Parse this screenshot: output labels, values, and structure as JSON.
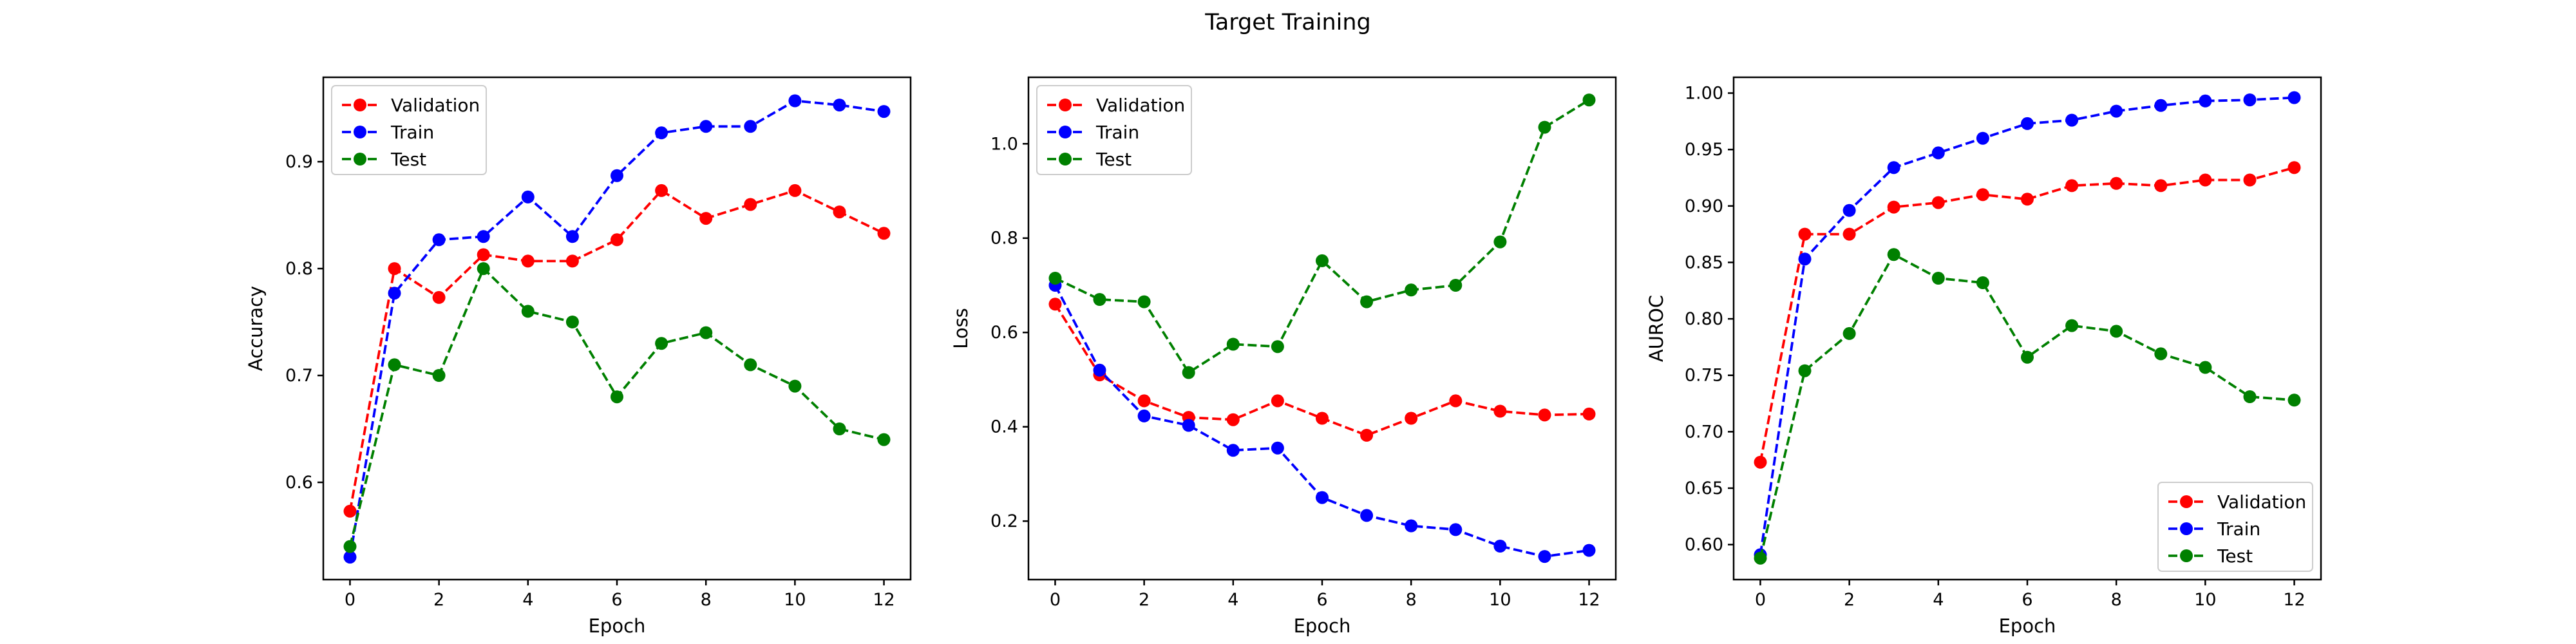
{
  "figure": {
    "title": "Target Training"
  },
  "colors": {
    "Validation": "#ff0000",
    "Train": "#0000ff",
    "Test": "#008000"
  },
  "chart_data": [
    {
      "type": "line",
      "title": "",
      "xlabel": "Epoch",
      "ylabel": "Accuracy",
      "x": [
        0,
        1,
        2,
        3,
        4,
        5,
        6,
        7,
        8,
        9,
        10,
        11,
        12
      ],
      "xlim": [
        -0.6,
        12.6
      ],
      "ylim": [
        0.509,
        0.979
      ],
      "xticks": [
        0,
        2,
        4,
        6,
        8,
        10,
        12
      ],
      "yticks": [
        0.6,
        0.7,
        0.8,
        0.9
      ],
      "ytick_labels": [
        "0.6",
        "0.7",
        "0.8",
        "0.9"
      ],
      "legend_loc": "upper left",
      "series": [
        {
          "name": "Validation",
          "color": "#ff0000",
          "values": [
            0.573,
            0.8,
            0.773,
            0.813,
            0.807,
            0.807,
            0.827,
            0.873,
            0.847,
            0.86,
            0.873,
            0.853,
            0.833
          ]
        },
        {
          "name": "Train",
          "color": "#0000ff",
          "values": [
            0.53,
            0.777,
            0.827,
            0.83,
            0.867,
            0.83,
            0.887,
            0.927,
            0.933,
            0.933,
            0.957,
            0.953,
            0.947
          ]
        },
        {
          "name": "Test",
          "color": "#008000",
          "values": [
            0.54,
            0.71,
            0.7,
            0.8,
            0.76,
            0.75,
            0.68,
            0.73,
            0.74,
            0.71,
            0.69,
            0.65,
            0.64
          ]
        }
      ]
    },
    {
      "type": "line",
      "title": "",
      "xlabel": "Epoch",
      "ylabel": "Loss",
      "x": [
        0,
        1,
        2,
        3,
        4,
        5,
        6,
        7,
        8,
        9,
        10,
        11,
        12
      ],
      "xlim": [
        -0.6,
        12.6
      ],
      "ylim": [
        0.076,
        1.141
      ],
      "xticks": [
        0,
        2,
        4,
        6,
        8,
        10,
        12
      ],
      "yticks": [
        0.2,
        0.4,
        0.6,
        0.8,
        1.0
      ],
      "ytick_labels": [
        "0.2",
        "0.4",
        "0.6",
        "0.8",
        "1.0"
      ],
      "legend_loc": "upper left",
      "series": [
        {
          "name": "Validation",
          "color": "#ff0000",
          "values": [
            0.66,
            0.51,
            0.455,
            0.42,
            0.415,
            0.455,
            0.418,
            0.382,
            0.418,
            0.455,
            0.433,
            0.425,
            0.427
          ]
        },
        {
          "name": "Train",
          "color": "#0000ff",
          "values": [
            0.7,
            0.52,
            0.423,
            0.403,
            0.35,
            0.355,
            0.25,
            0.212,
            0.19,
            0.182,
            0.147,
            0.125,
            0.138
          ]
        },
        {
          "name": "Test",
          "color": "#008000",
          "values": [
            0.715,
            0.67,
            0.665,
            0.515,
            0.575,
            0.57,
            0.752,
            0.665,
            0.69,
            0.7,
            0.792,
            1.035,
            1.093
          ]
        }
      ]
    },
    {
      "type": "line",
      "title": "",
      "xlabel": "Epoch",
      "ylabel": "AUROC",
      "x": [
        0,
        1,
        2,
        3,
        4,
        5,
        6,
        7,
        8,
        9,
        10,
        11,
        12
      ],
      "xlim": [
        -0.6,
        12.6
      ],
      "ylim": [
        0.569,
        1.014
      ],
      "xticks": [
        0,
        2,
        4,
        6,
        8,
        10,
        12
      ],
      "yticks": [
        0.6,
        0.65,
        0.7,
        0.75,
        0.8,
        0.85,
        0.9,
        0.95,
        1.0
      ],
      "ytick_labels": [
        "0.60",
        "0.65",
        "0.70",
        "0.75",
        "0.80",
        "0.85",
        "0.90",
        "0.95",
        "1.00"
      ],
      "legend_loc": "lower right",
      "series": [
        {
          "name": "Validation",
          "color": "#ff0000",
          "values": [
            0.673,
            0.875,
            0.875,
            0.899,
            0.903,
            0.91,
            0.906,
            0.918,
            0.92,
            0.918,
            0.923,
            0.923,
            0.934
          ]
        },
        {
          "name": "Train",
          "color": "#0000ff",
          "values": [
            0.591,
            0.853,
            0.896,
            0.934,
            0.947,
            0.96,
            0.973,
            0.976,
            0.984,
            0.989,
            0.993,
            0.994,
            0.996
          ]
        },
        {
          "name": "Test",
          "color": "#008000",
          "values": [
            0.588,
            0.754,
            0.787,
            0.857,
            0.836,
            0.832,
            0.766,
            0.794,
            0.789,
            0.769,
            0.757,
            0.731,
            0.728
          ]
        }
      ]
    }
  ]
}
